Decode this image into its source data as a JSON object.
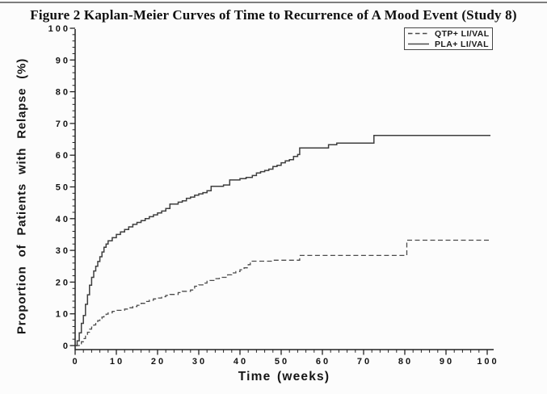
{
  "chart_data": {
    "type": "line",
    "subtype": "kaplan-meier-step",
    "title": "Figure 2 Kaplan-Meier Curves of Time to Recurrence of A Mood Event (Study 8)",
    "xlabel": "Time (weeks)",
    "ylabel": "Proportion of Patients with Relapse (%)",
    "xlim": [
      0,
      100
    ],
    "ylim": [
      0,
      100
    ],
    "x_ticks": [
      0,
      10,
      20,
      30,
      40,
      50,
      60,
      70,
      80,
      90,
      100
    ],
    "y_ticks": [
      0,
      10,
      20,
      30,
      40,
      50,
      60,
      70,
      80,
      90,
      100
    ],
    "x_minor_step": 2,
    "y_minor_step": 2,
    "grid": false,
    "legend_position": "top-right",
    "interpolation": "step-after",
    "axis_color": "#222222",
    "series": [
      {
        "name": "QTP+ LI/VAL",
        "style": "dashed",
        "color": "#4a4a4a",
        "points": [
          [
            0,
            0
          ],
          [
            1,
            0.5
          ],
          [
            1.5,
            1.2
          ],
          [
            2,
            2.2
          ],
          [
            2.5,
            3.2
          ],
          [
            3,
            4.2
          ],
          [
            3.5,
            5.2
          ],
          [
            4,
            5.8
          ],
          [
            4.5,
            6.5
          ],
          [
            5,
            7.2
          ],
          [
            5.5,
            7.9
          ],
          [
            6,
            8.5
          ],
          [
            6.5,
            9
          ],
          [
            7,
            9.5
          ],
          [
            7.5,
            9.9
          ],
          [
            8,
            10.3
          ],
          [
            9,
            10.8
          ],
          [
            10,
            11.1
          ],
          [
            12,
            11.5
          ],
          [
            13,
            11.9
          ],
          [
            14,
            12.3
          ],
          [
            15,
            12.7
          ],
          [
            16,
            13.3
          ],
          [
            17,
            13.9
          ],
          [
            18,
            14.3
          ],
          [
            19,
            14.7
          ],
          [
            20,
            15
          ],
          [
            21,
            15.4
          ],
          [
            22,
            15.8
          ],
          [
            23,
            16.1
          ],
          [
            25,
            16.7
          ],
          [
            26,
            17.1
          ],
          [
            28,
            17.5
          ],
          [
            29,
            18.7
          ],
          [
            30,
            19.1
          ],
          [
            31,
            19.7
          ],
          [
            32,
            20.5
          ],
          [
            34,
            21.1
          ],
          [
            35,
            21.5
          ],
          [
            37,
            22.3
          ],
          [
            38,
            22.9
          ],
          [
            39,
            23.3
          ],
          [
            40,
            23.9
          ],
          [
            41,
            24.5
          ],
          [
            42,
            25.5
          ],
          [
            42.5,
            26.6
          ],
          [
            48,
            26.9
          ],
          [
            54.5,
            28.4
          ],
          [
            80.5,
            33.2
          ],
          [
            100,
            33.2
          ]
        ]
      },
      {
        "name": "PLA+ LI/VAL",
        "style": "solid",
        "color": "#3e3e3e",
        "points": [
          [
            0,
            0
          ],
          [
            0.5,
            1.5
          ],
          [
            1,
            4
          ],
          [
            1.5,
            7
          ],
          [
            2,
            9.5
          ],
          [
            2.5,
            13
          ],
          [
            3,
            16
          ],
          [
            3.5,
            19
          ],
          [
            4,
            21.5
          ],
          [
            4.5,
            23.5
          ],
          [
            5,
            25
          ],
          [
            5.5,
            26.5
          ],
          [
            6,
            28
          ],
          [
            6.5,
            29.5
          ],
          [
            7,
            31
          ],
          [
            7.5,
            32
          ],
          [
            8,
            33
          ],
          [
            9,
            34
          ],
          [
            10,
            35
          ],
          [
            11,
            35.8
          ],
          [
            12,
            36.6
          ],
          [
            13,
            37.4
          ],
          [
            14,
            38.2
          ],
          [
            15,
            38.8
          ],
          [
            16,
            39.4
          ],
          [
            17,
            40
          ],
          [
            18,
            40.6
          ],
          [
            19,
            41.2
          ],
          [
            20,
            41.8
          ],
          [
            21,
            42.4
          ],
          [
            22,
            43.2
          ],
          [
            23,
            44.6
          ],
          [
            25,
            45.2
          ],
          [
            26,
            45.6
          ],
          [
            27,
            46.4
          ],
          [
            28,
            46.8
          ],
          [
            29,
            47.4
          ],
          [
            30,
            47.8
          ],
          [
            31,
            48.2
          ],
          [
            32,
            48.8
          ],
          [
            33,
            50.2
          ],
          [
            36,
            50.6
          ],
          [
            37.5,
            52.2
          ],
          [
            40,
            52.6
          ],
          [
            41.5,
            53
          ],
          [
            43,
            53.6
          ],
          [
            44,
            54.4
          ],
          [
            45,
            54.8
          ],
          [
            46,
            55.2
          ],
          [
            47,
            55.6
          ],
          [
            48,
            56.4
          ],
          [
            49,
            56.8
          ],
          [
            50,
            57.6
          ],
          [
            51,
            58.2
          ],
          [
            52,
            58.6
          ],
          [
            53,
            59.6
          ],
          [
            54,
            60.2
          ],
          [
            54.5,
            62.3
          ],
          [
            61.5,
            63.3
          ],
          [
            63.5,
            63.8
          ],
          [
            72.5,
            66.2
          ],
          [
            100,
            66.2
          ]
        ]
      }
    ]
  }
}
